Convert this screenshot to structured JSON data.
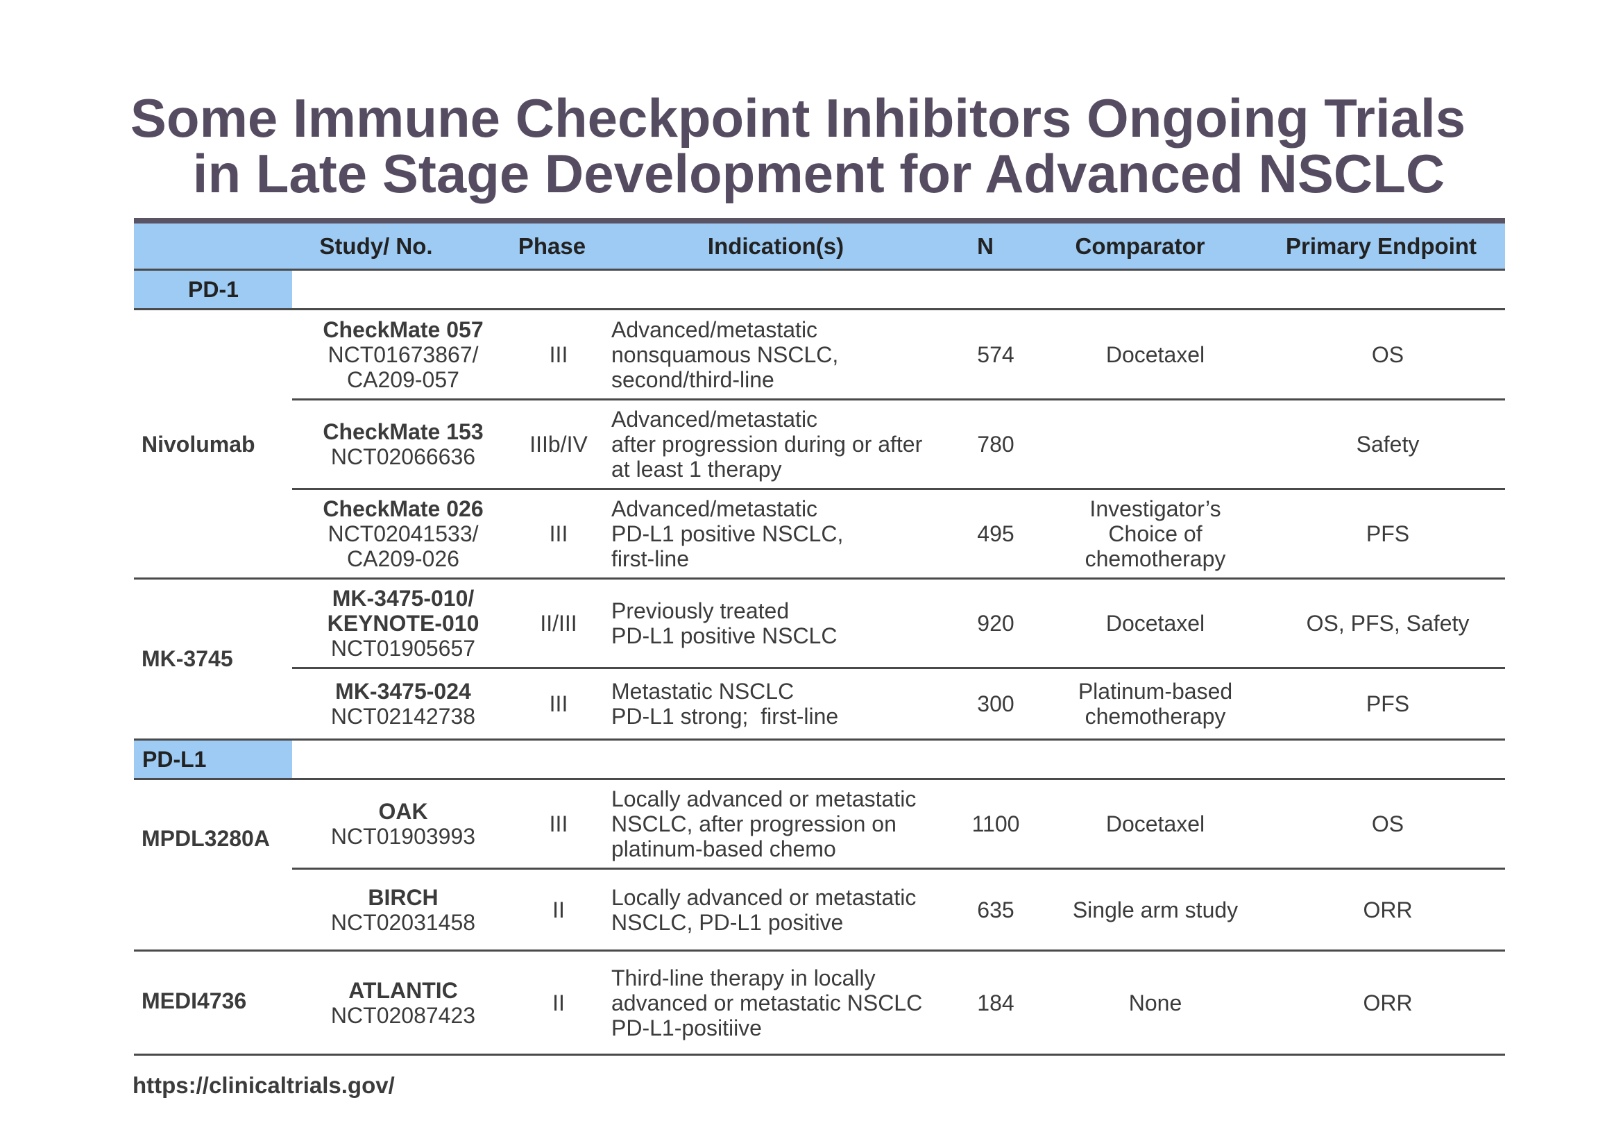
{
  "title": {
    "line1": "Some Immune Checkpoint Inhibitors Ongoing Trials",
    "line2": "in Late Stage Development for Advanced NSCLC"
  },
  "colors": {
    "header_bg": "#9dcbf3",
    "title": "#564c62",
    "rule": "#4a4a4a"
  },
  "table": {
    "headers": {
      "drug": "",
      "study": "Study/ No.",
      "phase": "Phase",
      "indication": "Indication(s)",
      "n": "N",
      "comparator": "Comparator",
      "endpoint": "Primary Endpoint"
    },
    "groups": {
      "pd1": "PD-1",
      "pdl1": "PD-L1"
    },
    "drugs": {
      "nivolumab": "Nivolumab",
      "mk3745": "MK-3745",
      "mpdl": "MPDL3280A",
      "medi": "MEDI4736"
    },
    "rows": [
      {
        "study_bold": "CheckMate 057",
        "study_lines": [
          "NCT01673867/",
          "CA209-057"
        ],
        "phase": "III",
        "indication": [
          "Advanced/metastatic",
          "nonsquamous NSCLC,",
          "second/third-line"
        ],
        "n": "574",
        "comparator": [
          "Docetaxel"
        ],
        "endpoint": "OS"
      },
      {
        "study_bold": "CheckMate 153",
        "study_lines": [
          "NCT02066636"
        ],
        "phase": "IIIb/IV",
        "indication": [
          "Advanced/metastatic",
          "after progression during or after",
          "at least 1 therapy"
        ],
        "n": "780",
        "comparator": [],
        "endpoint": "Safety"
      },
      {
        "study_bold": "CheckMate 026",
        "study_lines": [
          "NCT02041533/",
          "CA209-026"
        ],
        "phase": "III",
        "indication": [
          "Advanced/metastatic",
          "PD-L1 positive NSCLC,",
          "first-line"
        ],
        "n": "495",
        "comparator": [
          "Investigator’s",
          "Choice of",
          "chemotherapy"
        ],
        "endpoint": "PFS"
      },
      {
        "study_bold": "MK-3475-010/",
        "study_bold2": "KEYNOTE-010",
        "study_lines": [
          "NCT01905657"
        ],
        "phase": "II/III",
        "indication": [
          "Previously treated",
          "PD-L1 positive NSCLC"
        ],
        "n": "920",
        "comparator": [
          "Docetaxel"
        ],
        "endpoint": "OS, PFS, Safety"
      },
      {
        "study_bold": "MK-3475-024",
        "study_lines": [
          "NCT02142738"
        ],
        "phase": "III",
        "indication": [
          "Metastatic NSCLC",
          "PD-L1 strong;  first-line"
        ],
        "n": "300",
        "comparator": [
          "Platinum-based",
          "chemotherapy"
        ],
        "endpoint": "PFS"
      },
      {
        "study_bold": "OAK",
        "study_lines": [
          "NCT01903993"
        ],
        "phase": "III",
        "indication": [
          "Locally advanced or metastatic",
          "NSCLC, after progression on",
          "platinum-based chemo"
        ],
        "n": "1100",
        "comparator": [
          "Docetaxel"
        ],
        "endpoint": "OS"
      },
      {
        "study_bold": "BIRCH",
        "study_lines": [
          "NCT02031458"
        ],
        "phase": "II",
        "indication": [
          "Locally advanced or metastatic",
          "NSCLC, PD-L1 positive"
        ],
        "n": "635",
        "comparator": [
          "Single arm study"
        ],
        "endpoint": "ORR"
      },
      {
        "study_bold": "ATLANTIC",
        "study_lines": [
          "NCT02087423"
        ],
        "phase": "II",
        "indication": [
          "Third-line therapy in locally",
          "advanced or metastatic NSCLC",
          "PD-L1-positiive"
        ],
        "n": "184",
        "comparator": [
          "None"
        ],
        "endpoint": "ORR"
      }
    ]
  },
  "footer": {
    "url": "https://clinicaltrials.gov/"
  }
}
